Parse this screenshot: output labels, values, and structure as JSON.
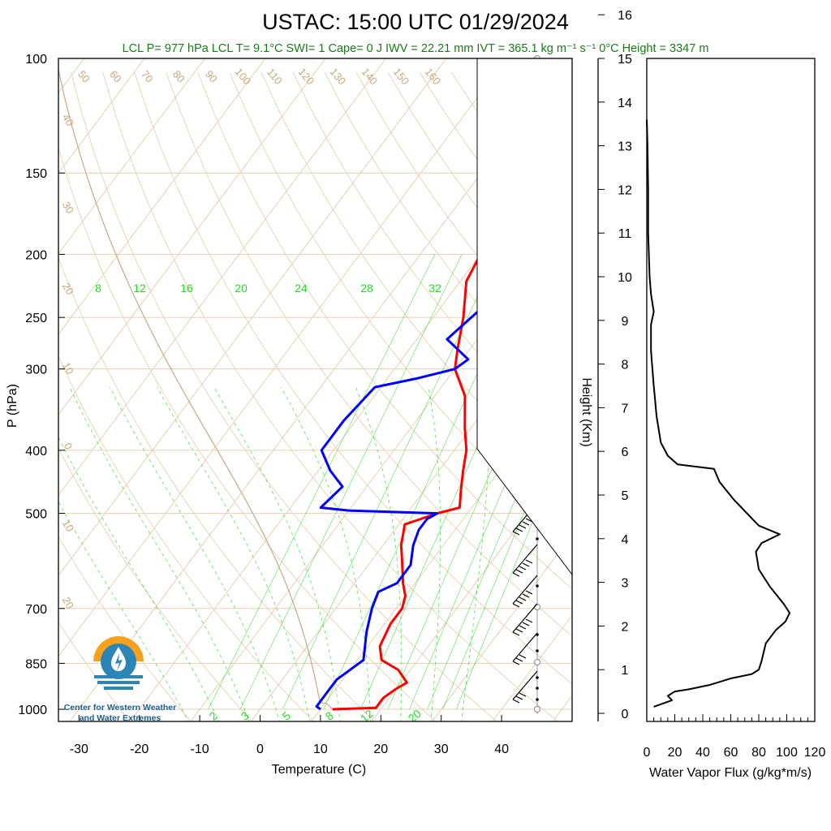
{
  "title": "USTAC: 15:00 UTC 01/29/2024",
  "subtitle": "LCL P= 977 hPa  LCL T= 9.1°C  SWI= 1  Cape= 0 J  IWV = 22.21 mm  IVT = 365.1 kg m⁻¹ s⁻¹  0°C Height = 3347 m",
  "logo": {
    "line1": "Center for Western Weather",
    "line2": "and Water Extremes"
  },
  "colors": {
    "temperature": "#ff0000",
    "dewpoint": "#0000ff",
    "isotherm": "#e8d0b0",
    "mixing_ratio": "#22dd22",
    "parcel": "#c8a888"
  },
  "chart_data": [
    {
      "type": "line",
      "title": "USTAC: 15:00 UTC 01/29/2024",
      "xlabel": "Temperature (C)",
      "ylabel": "P (hPa)",
      "y_scale": "log",
      "xlim": [
        -35,
        50
      ],
      "ylim": [
        1000,
        100
      ],
      "x_ticks": [
        "-30",
        "-20",
        "-10",
        "0",
        "10",
        "20",
        "30",
        "40"
      ],
      "y_ticks": [
        "100",
        "150",
        "200",
        "250",
        "300",
        "400",
        "500",
        "700",
        "850",
        "1000"
      ],
      "dry_adiabat_labels": [
        "50",
        "60",
        "70",
        "80",
        "90",
        "100",
        "110",
        "120",
        "130",
        "140",
        "150",
        "160"
      ],
      "isotherm_left_labels": [
        "40",
        "30",
        "20",
        "10",
        "0",
        "10",
        "20"
      ],
      "isotherm_right_labels": [
        "30",
        "20",
        "10",
        "0",
        "10",
        "20",
        "30"
      ],
      "mixing_ratio_labels_top": [
        "8",
        "12",
        "16",
        "20",
        "24",
        "28",
        "32"
      ],
      "mixing_ratio_labels_bottom": [
        "2",
        "3",
        "5",
        "8",
        "12",
        "20"
      ],
      "series": [
        {
          "name": "Temperature",
          "points": [
            [
              12,
              1000
            ],
            [
              19,
              995
            ],
            [
              19,
              960
            ],
            [
              20,
              930
            ],
            [
              21,
              910
            ],
            [
              18,
              870
            ],
            [
              14,
              840
            ],
            [
              12,
              800
            ],
            [
              11,
              740
            ],
            [
              11,
              700
            ],
            [
              10,
              670
            ],
            [
              8,
              640
            ],
            [
              5,
              590
            ],
            [
              3,
              560
            ],
            [
              1,
              520
            ],
            [
              5,
              500
            ],
            [
              8,
              490
            ],
            [
              6,
              460
            ],
            [
              4,
              430
            ],
            [
              2,
              400
            ],
            [
              -1,
              370
            ],
            [
              -5,
              330
            ],
            [
              -10,
              300
            ],
            [
              -12,
              280
            ],
            [
              -15,
              250
            ],
            [
              -19,
              220
            ],
            [
              -20,
              200
            ],
            [
              -18,
              185
            ],
            [
              -13,
              178
            ],
            [
              -8,
              172
            ],
            [
              -5,
              166
            ],
            [
              -2,
              160
            ],
            [
              3,
              150
            ]
          ]
        },
        {
          "name": "Dewpoint",
          "points": [
            [
              10,
              1000
            ],
            [
              9,
              990
            ],
            [
              9,
              980
            ],
            [
              9,
              940
            ],
            [
              9,
              900
            ],
            [
              11,
              840
            ],
            [
              8,
              760
            ],
            [
              6,
              700
            ],
            [
              5,
              660
            ],
            [
              7,
              640
            ],
            [
              7,
              600
            ],
            [
              5,
              560
            ],
            [
              4,
              530
            ],
            [
              4,
              510
            ],
            [
              5,
              500
            ],
            [
              -10,
              495
            ],
            [
              -15,
              490
            ],
            [
              -14,
              455
            ],
            [
              -18,
              430
            ],
            [
              -22,
              400
            ],
            [
              -22,
              360
            ],
            [
              -21,
              320
            ],
            [
              -15,
              310
            ],
            [
              -10,
              300
            ],
            [
              -9,
              290
            ],
            [
              -15,
              270
            ],
            [
              -13,
              240
            ],
            [
              -17,
              210
            ],
            [
              -18,
              190
            ],
            [
              -15,
              175
            ],
            [
              -24,
              168
            ],
            [
              -22,
              160
            ],
            [
              -22,
              152
            ]
          ]
        }
      ]
    },
    {
      "type": "line",
      "xlabel": "Water Vapor Flux (g/kg*m/s)",
      "ylabel": "Height (Km)",
      "xlim": [
        0,
        120
      ],
      "ylim": [
        -0.2,
        16.5
      ],
      "x_ticks": [
        "0",
        "20",
        "40",
        "60",
        "80",
        "100",
        "120"
      ],
      "y_ticks": [
        "0",
        "1",
        "2",
        "3",
        "4",
        "5",
        "6",
        "7",
        "8",
        "9",
        "10",
        "11",
        "12",
        "13",
        "14",
        "15",
        "16"
      ],
      "series": [
        {
          "name": "",
          "points": [
            [
              5,
              0.15
            ],
            [
              18,
              0.3
            ],
            [
              15,
              0.4
            ],
            [
              20,
              0.5
            ],
            [
              30,
              0.55
            ],
            [
              45,
              0.65
            ],
            [
              60,
              0.8
            ],
            [
              75,
              0.9
            ],
            [
              80,
              1.0
            ],
            [
              82,
              1.2
            ],
            [
              85,
              1.6
            ],
            [
              92,
              1.9
            ],
            [
              99,
              2.1
            ],
            [
              102,
              2.3
            ],
            [
              98,
              2.5
            ],
            [
              88,
              2.9
            ],
            [
              80,
              3.3
            ],
            [
              78,
              3.7
            ],
            [
              82,
              3.9
            ],
            [
              95,
              4.1
            ],
            [
              80,
              4.3
            ],
            [
              74,
              4.5
            ],
            [
              68,
              4.7
            ],
            [
              62,
              4.9
            ],
            [
              52,
              5.3
            ],
            [
              48,
              5.6
            ],
            [
              22,
              5.7
            ],
            [
              15,
              5.9
            ],
            [
              10,
              6.2
            ],
            [
              7,
              6.8
            ],
            [
              5,
              7.5
            ],
            [
              3,
              8.3
            ],
            [
              3,
              8.9
            ],
            [
              5,
              9.2
            ],
            [
              3,
              9.6
            ],
            [
              2,
              10
            ],
            [
              1,
              11
            ],
            [
              1,
              12
            ],
            [
              0.5,
              13
            ],
            [
              0,
              13.6
            ]
          ]
        }
      ]
    }
  ]
}
